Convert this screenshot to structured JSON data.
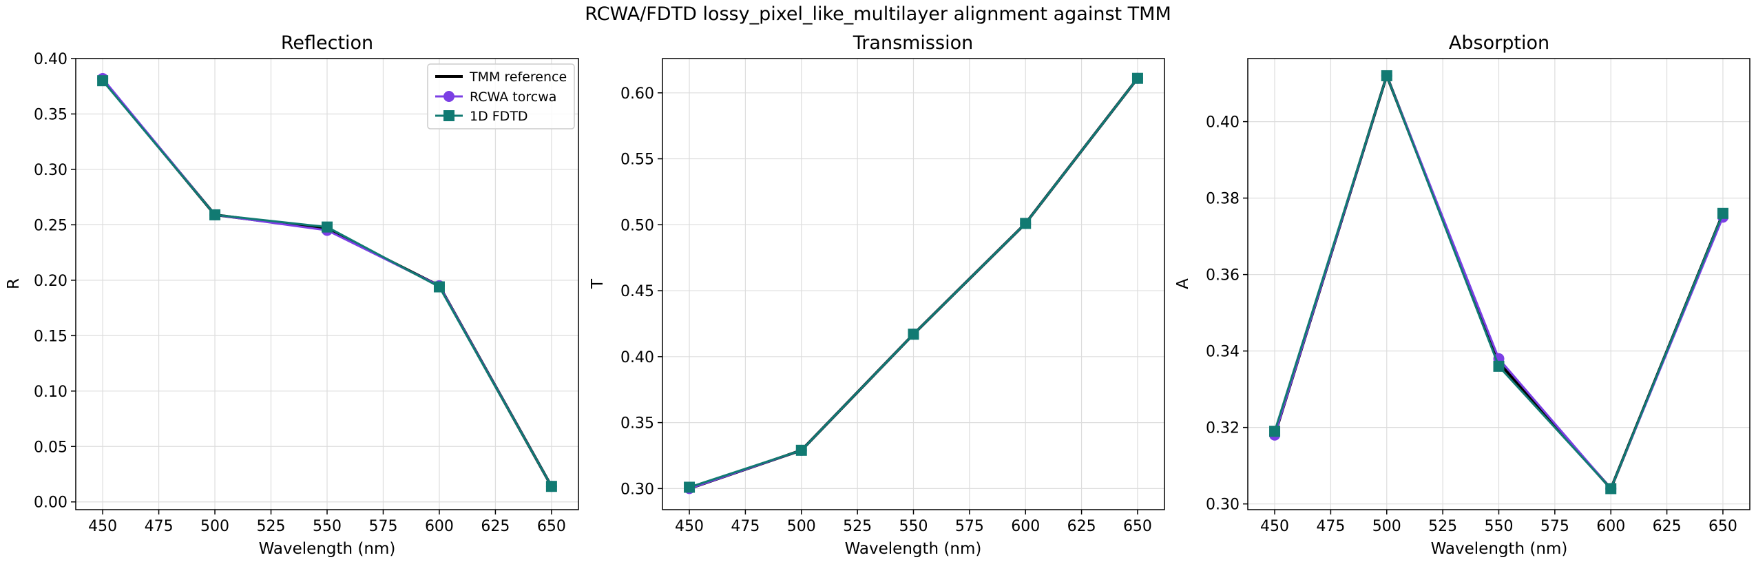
{
  "figure": {
    "suptitle": "RCWA/FDTD lossy_pixel_like_multilayer alignment against TMM",
    "axis_color": "#000000",
    "grid_color": "#dddddd"
  },
  "legend": {
    "placement": "upper right of first panel",
    "entries": [
      {
        "label": "TMM reference",
        "color": "#000000",
        "marker": "none"
      },
      {
        "label": "RCWA torcwa",
        "color": "#7b3fe4",
        "marker": "circle"
      },
      {
        "label": "1D FDTD",
        "color": "#117a72",
        "marker": "square"
      }
    ]
  },
  "chart_data": [
    {
      "type": "line",
      "title": "Reflection",
      "xlabel": "Wavelength (nm)",
      "ylabel": "R",
      "grid": true,
      "xlim": [
        438,
        662
      ],
      "ylim": [
        -0.007,
        0.4
      ],
      "xticks": [
        450,
        475,
        500,
        525,
        550,
        575,
        600,
        625,
        650
      ],
      "yticks": [
        0.0,
        0.05,
        0.1,
        0.15,
        0.2,
        0.25,
        0.3,
        0.35,
        0.4
      ],
      "ytick_labels": [
        "0.00",
        "0.05",
        "0.10",
        "0.15",
        "0.20",
        "0.25",
        "0.30",
        "0.35",
        "0.40"
      ],
      "x": [
        450,
        500,
        550,
        600,
        650
      ],
      "series": [
        {
          "name": "TMM reference",
          "color": "#000000",
          "marker": "none",
          "values": [
            0.381,
            0.259,
            0.246,
            0.195,
            0.014
          ]
        },
        {
          "name": "RCWA torcwa",
          "color": "#7b3fe4",
          "marker": "circle",
          "values": [
            0.382,
            0.259,
            0.245,
            0.195,
            0.014
          ]
        },
        {
          "name": "1D FDTD",
          "color": "#117a72",
          "marker": "square",
          "values": [
            0.38,
            0.259,
            0.248,
            0.194,
            0.014
          ]
        }
      ]
    },
    {
      "type": "line",
      "title": "Transmission",
      "xlabel": "Wavelength (nm)",
      "ylabel": "T",
      "grid": true,
      "xlim": [
        438,
        662
      ],
      "ylim": [
        0.284,
        0.626
      ],
      "xticks": [
        450,
        475,
        500,
        525,
        550,
        575,
        600,
        625,
        650
      ],
      "yticks": [
        0.3,
        0.35,
        0.4,
        0.45,
        0.5,
        0.55,
        0.6
      ],
      "ytick_labels": [
        "0.30",
        "0.35",
        "0.40",
        "0.45",
        "0.50",
        "0.55",
        "0.60"
      ],
      "x": [
        450,
        500,
        550,
        600,
        650
      ],
      "series": [
        {
          "name": "TMM reference",
          "color": "#000000",
          "marker": "none",
          "values": [
            0.3,
            0.329,
            0.417,
            0.501,
            0.611
          ]
        },
        {
          "name": "RCWA torcwa",
          "color": "#7b3fe4",
          "marker": "circle",
          "values": [
            0.3,
            0.329,
            0.417,
            0.501,
            0.611
          ]
        },
        {
          "name": "1D FDTD",
          "color": "#117a72",
          "marker": "square",
          "values": [
            0.301,
            0.329,
            0.417,
            0.501,
            0.611
          ]
        }
      ]
    },
    {
      "type": "line",
      "title": "Absorption",
      "xlabel": "Wavelength (nm)",
      "ylabel": "A",
      "grid": true,
      "xlim": [
        438,
        662
      ],
      "ylim": [
        0.2985,
        0.4165
      ],
      "xticks": [
        450,
        475,
        500,
        525,
        550,
        575,
        600,
        625,
        650
      ],
      "yticks": [
        0.3,
        0.32,
        0.34,
        0.36,
        0.38,
        0.4
      ],
      "ytick_labels": [
        "0.30",
        "0.32",
        "0.34",
        "0.36",
        "0.38",
        "0.40"
      ],
      "x": [
        450,
        500,
        550,
        600,
        650
      ],
      "series": [
        {
          "name": "TMM reference",
          "color": "#000000",
          "marker": "none",
          "values": [
            0.318,
            0.412,
            0.337,
            0.304,
            0.376
          ]
        },
        {
          "name": "RCWA torcwa",
          "color": "#7b3fe4",
          "marker": "circle",
          "values": [
            0.318,
            0.412,
            0.338,
            0.304,
            0.375
          ]
        },
        {
          "name": "1D FDTD",
          "color": "#117a72",
          "marker": "square",
          "values": [
            0.319,
            0.412,
            0.336,
            0.304,
            0.376
          ]
        }
      ]
    }
  ]
}
